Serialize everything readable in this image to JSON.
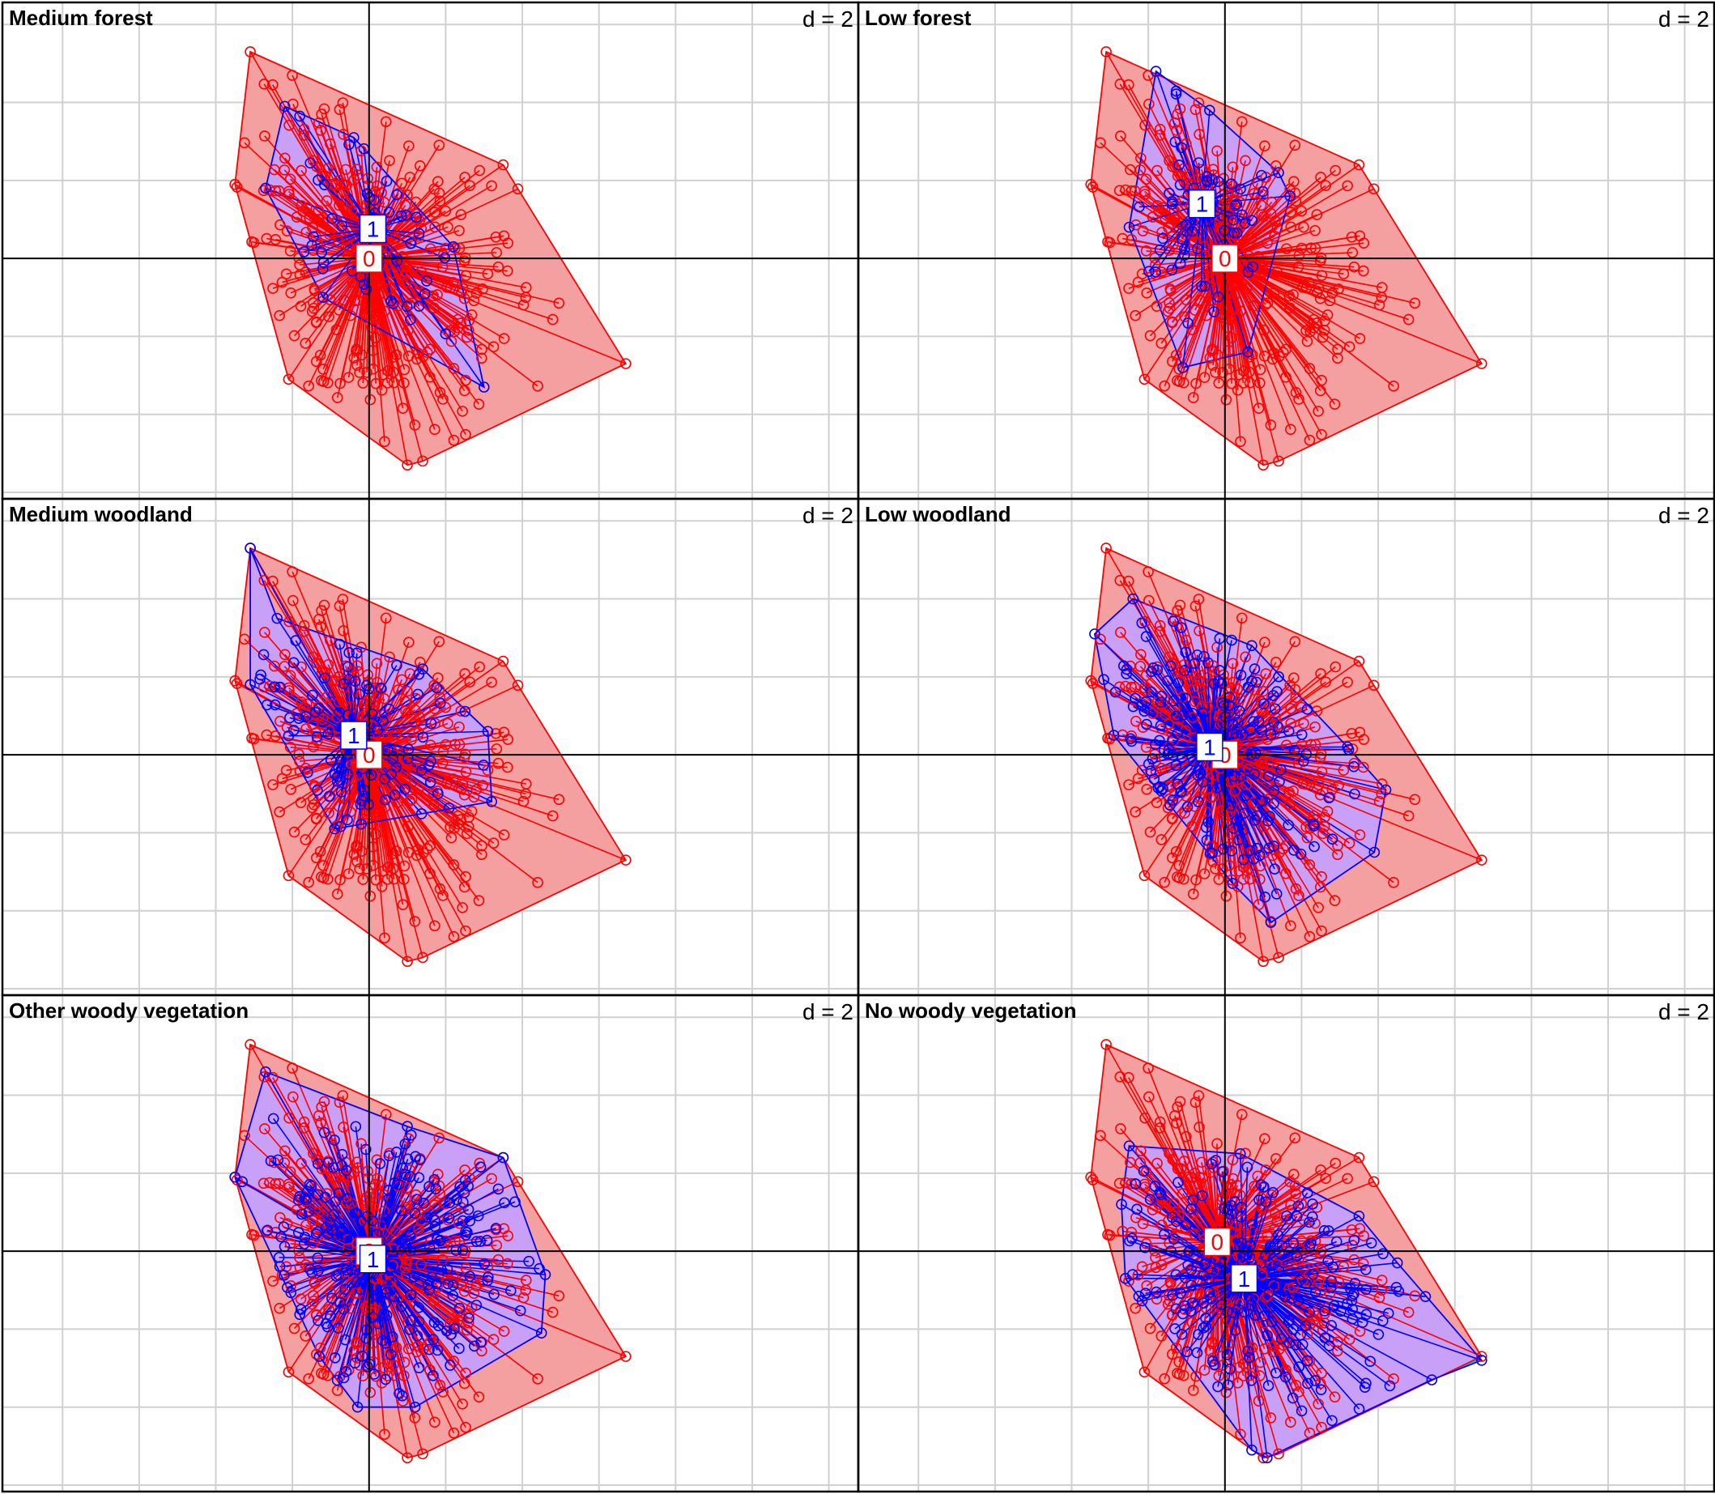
{
  "chart_data": {
    "type": "scatter",
    "subtype": "grouped scatter with star lines and convex hulls (s.class)",
    "layout": {
      "rows": 3,
      "cols": 2
    },
    "grid": true,
    "grid_label": "d = 2",
    "colors": {
      "group0": "#ff0000",
      "group1": "#0000ff",
      "hull0_fill": "#f4a0a0",
      "hull1_fill": "#00c8f0",
      "overlap_fill": "#c8a0f8"
    },
    "xlim": [
      -4.7,
      6.3
    ],
    "ylim": [
      -3.0,
      3.2
    ],
    "cloud0": {
      "center": [
        0,
        0
      ],
      "hull": [
        [
          -1.55,
          2.65
        ],
        [
          1.75,
          1.2
        ],
        [
          3.35,
          -1.35
        ],
        [
          0.7,
          -2.6
        ],
        [
          0.5,
          -2.65
        ],
        [
          -1.05,
          -1.55
        ],
        [
          -1.75,
          0.95
        ]
      ]
    },
    "panels": [
      {
        "title": "Medium forest",
        "centroid0": {
          "label": "0",
          "x": 0.0,
          "y": 0.0
        },
        "centroid1": {
          "label": "1",
          "x": 0.05,
          "y": 0.38
        },
        "hull1": [
          [
            -1.1,
            1.95
          ],
          [
            -0.2,
            1.55
          ],
          [
            1.1,
            0.15
          ],
          [
            1.5,
            -1.65
          ],
          [
            -0.6,
            -0.5
          ],
          [
            -1.35,
            0.9
          ]
        ],
        "n1": 45,
        "spread1": [
          0.75,
          0.95
        ]
      },
      {
        "title": "Low forest",
        "centroid0": {
          "label": "0",
          "x": 0.0,
          "y": 0.0
        },
        "centroid1": {
          "label": "1",
          "x": -0.3,
          "y": 0.7
        },
        "hull1": [
          [
            -0.9,
            2.4
          ],
          [
            -0.2,
            1.9
          ],
          [
            0.7,
            1.1
          ],
          [
            0.85,
            0.8
          ],
          [
            0.3,
            -1.2
          ],
          [
            -0.55,
            -1.4
          ],
          [
            -1.25,
            0.4
          ]
        ],
        "n1": 60,
        "spread1": [
          0.55,
          0.95
        ]
      },
      {
        "title": "Medium woodland",
        "centroid0": {
          "label": "0",
          "x": 0.0,
          "y": 0.0
        },
        "centroid1": {
          "label": "1",
          "x": -0.2,
          "y": 0.25
        },
        "hull1": [
          [
            -1.55,
            2.65
          ],
          [
            -1.2,
            1.75
          ],
          [
            0.7,
            1.1
          ],
          [
            1.55,
            0.3
          ],
          [
            1.6,
            -0.6
          ],
          [
            -0.45,
            -0.95
          ],
          [
            -1.55,
            0.9
          ]
        ],
        "n1": 90,
        "spread1": [
          0.85,
          0.95
        ]
      },
      {
        "title": "Low woodland",
        "centroid0": {
          "label": "0",
          "x": 0.0,
          "y": 0.0
        },
        "centroid1": {
          "label": "1",
          "x": -0.2,
          "y": 0.1
        },
        "hull1": [
          [
            -1.2,
            2.0
          ],
          [
            0.35,
            1.4
          ],
          [
            1.6,
            0.1
          ],
          [
            2.1,
            -0.45
          ],
          [
            1.95,
            -1.25
          ],
          [
            0.6,
            -2.15
          ],
          [
            0.1,
            -1.65
          ],
          [
            -1.45,
            0.25
          ],
          [
            -1.7,
            1.55
          ]
        ],
        "n1": 170,
        "spread1": [
          1.0,
          1.0
        ]
      },
      {
        "title": "Other woody vegetation",
        "centroid0": {
          "label": "0",
          "x": 0.0,
          "y": 0.0
        },
        "centroid1": {
          "label": "1",
          "x": 0.05,
          "y": -0.1
        },
        "hull1": [
          [
            -1.35,
            2.3
          ],
          [
            0.5,
            1.6
          ],
          [
            1.75,
            1.2
          ],
          [
            2.3,
            -0.3
          ],
          [
            2.25,
            -1.05
          ],
          [
            0.6,
            -2.0
          ],
          [
            -0.15,
            -2.0
          ],
          [
            -0.65,
            -1.35
          ],
          [
            -1.75,
            0.95
          ]
        ],
        "n1": 230,
        "spread1": [
          1.05,
          1.0
        ]
      },
      {
        "title": "No woody vegetation",
        "centroid0": {
          "label": "0",
          "x": -0.1,
          "y": 0.12
        },
        "centroid1": {
          "label": "1",
          "x": 0.25,
          "y": -0.35
        },
        "hull1": [
          [
            -1.25,
            1.35
          ],
          [
            0.2,
            1.25
          ],
          [
            1.75,
            0.45
          ],
          [
            2.25,
            -0.15
          ],
          [
            3.35,
            -1.4
          ],
          [
            2.7,
            -1.65
          ],
          [
            0.55,
            -2.65
          ],
          [
            0.35,
            -2.55
          ],
          [
            -1.3,
            -0.35
          ],
          [
            -1.35,
            0.6
          ]
        ],
        "n1": 200,
        "spread1": [
          1.1,
          1.0
        ]
      }
    ]
  }
}
